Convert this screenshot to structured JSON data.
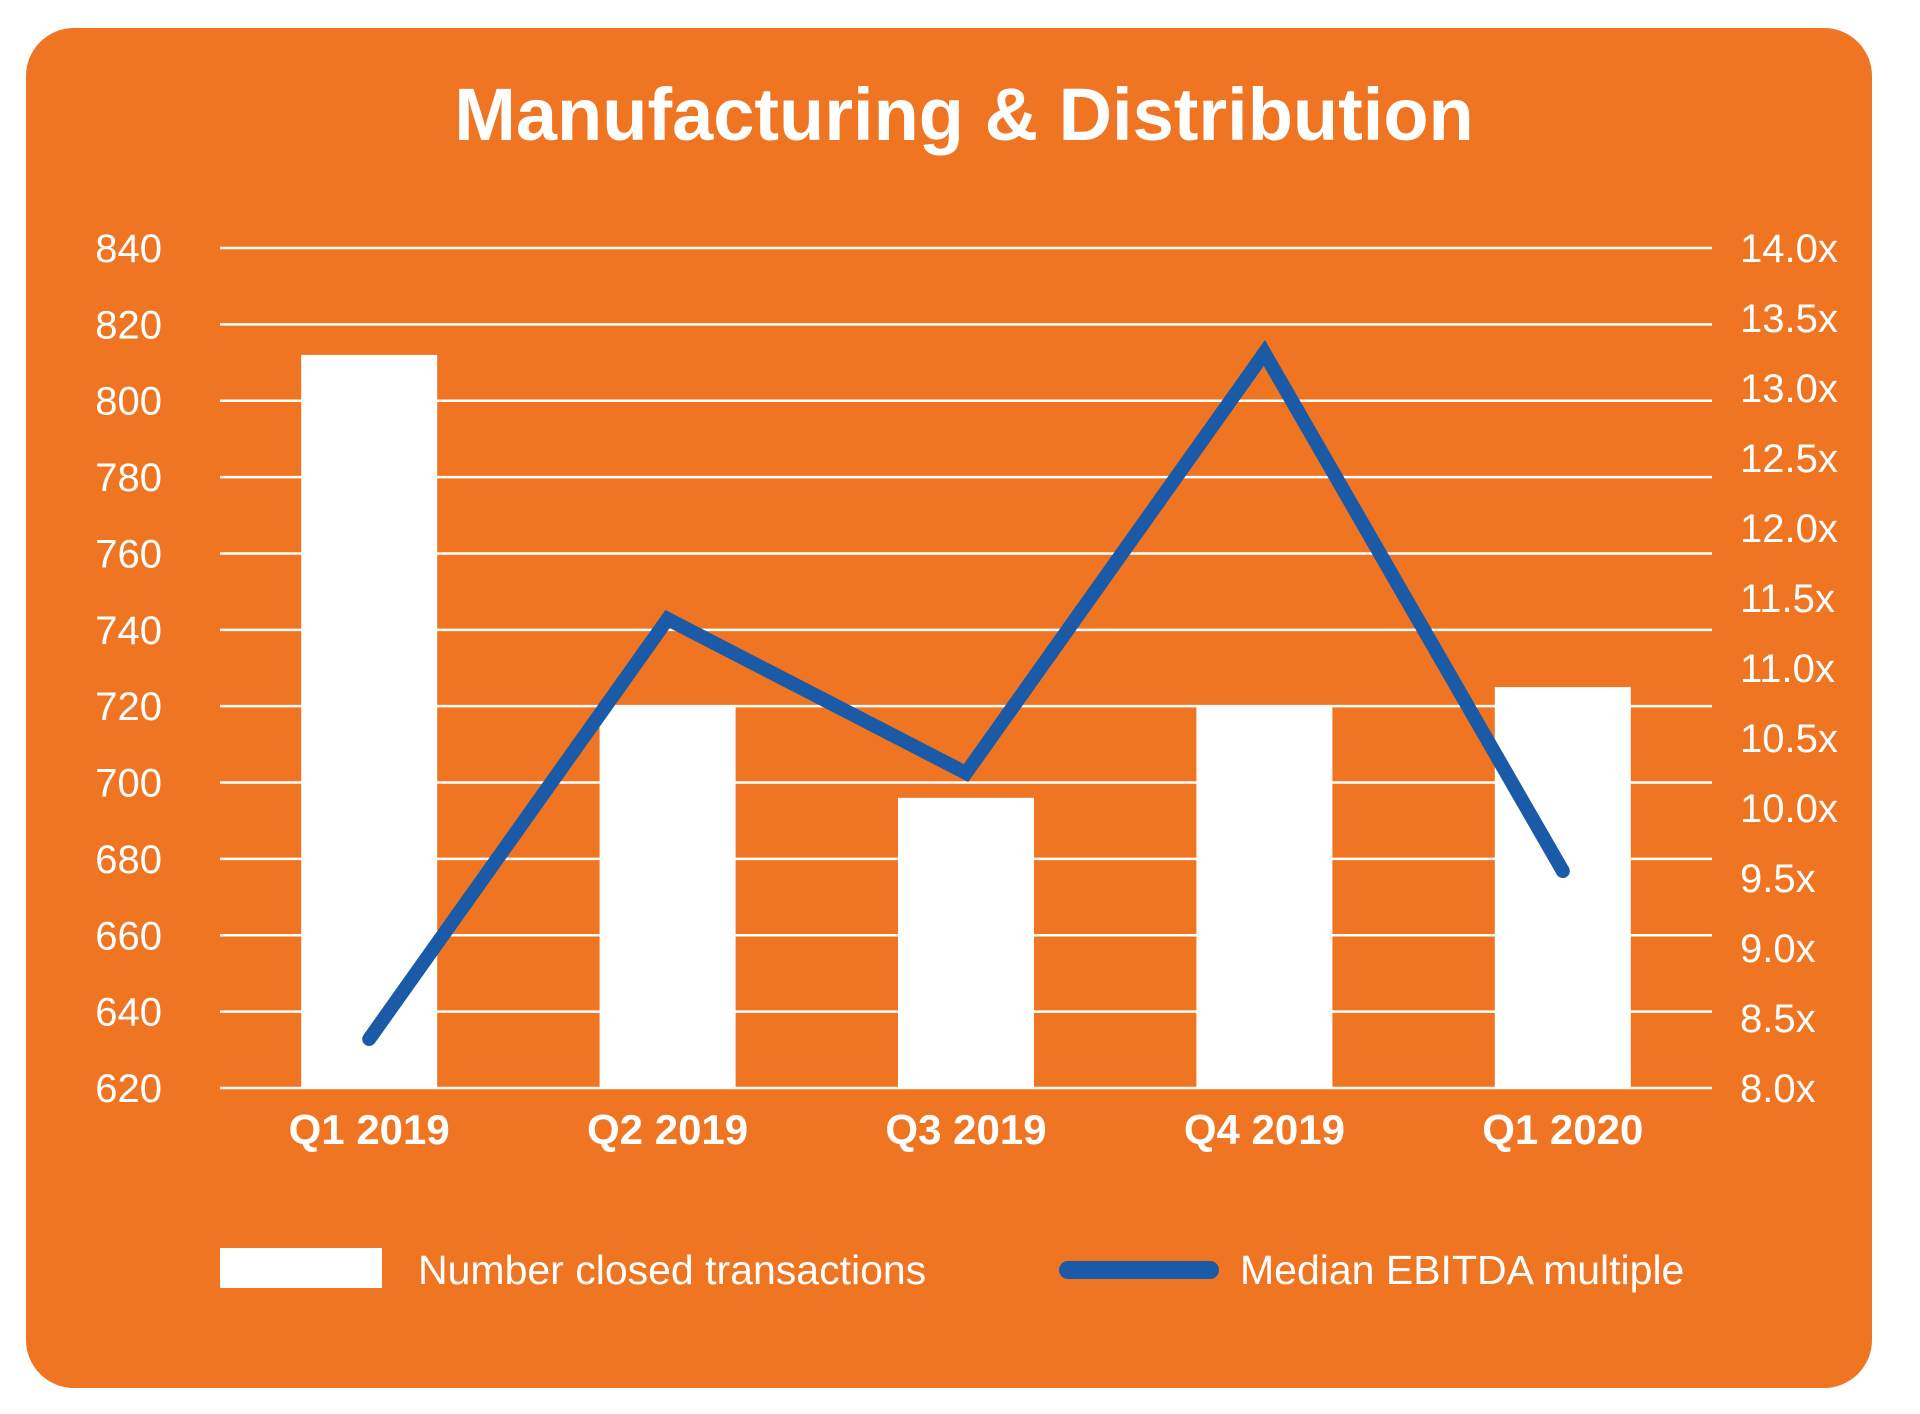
{
  "colors": {
    "background": "#F07522",
    "bars": "#FFFFFF",
    "line": "#1A5AA6",
    "grid": "#FFFFFF",
    "text": "#FFFFFF"
  },
  "chart_data": {
    "type": "bar",
    "title": "Manufacturing & Distribution",
    "categories": [
      "Q1 2019",
      "Q2 2019",
      "Q3 2019",
      "Q4 2019",
      "Q1 2020"
    ],
    "series": [
      {
        "name": "Number closed transactions",
        "type": "bar",
        "axis": "left",
        "values": [
          812,
          720,
          696,
          720,
          725
        ]
      },
      {
        "name": "Median EBITDA multiple",
        "type": "line",
        "axis": "right",
        "values": [
          8.35,
          11.35,
          10.25,
          13.25,
          9.55
        ]
      }
    ],
    "left_axis": {
      "ylim": [
        620,
        840
      ],
      "ticks": [
        620,
        640,
        660,
        680,
        700,
        720,
        740,
        760,
        780,
        800,
        820,
        840
      ],
      "tick_labels": [
        "620",
        "640",
        "660",
        "680",
        "700",
        "720",
        "740",
        "760",
        "780",
        "800",
        "820",
        "840"
      ]
    },
    "right_axis": {
      "ylim": [
        8.0,
        14.0
      ],
      "ticks": [
        8.0,
        8.5,
        9.0,
        9.5,
        10.0,
        10.5,
        11.0,
        11.5,
        12.0,
        12.5,
        13.0,
        13.5,
        14.0
      ],
      "tick_labels": [
        "8.0x",
        "8.5x",
        "9.0x",
        "9.5x",
        "10.0x",
        "10.5x",
        "11.0x",
        "11.5x",
        "12.0x",
        "12.5x",
        "13.0x",
        "13.5x",
        "14.0x"
      ]
    },
    "grid": true,
    "legend_position": "bottom"
  }
}
